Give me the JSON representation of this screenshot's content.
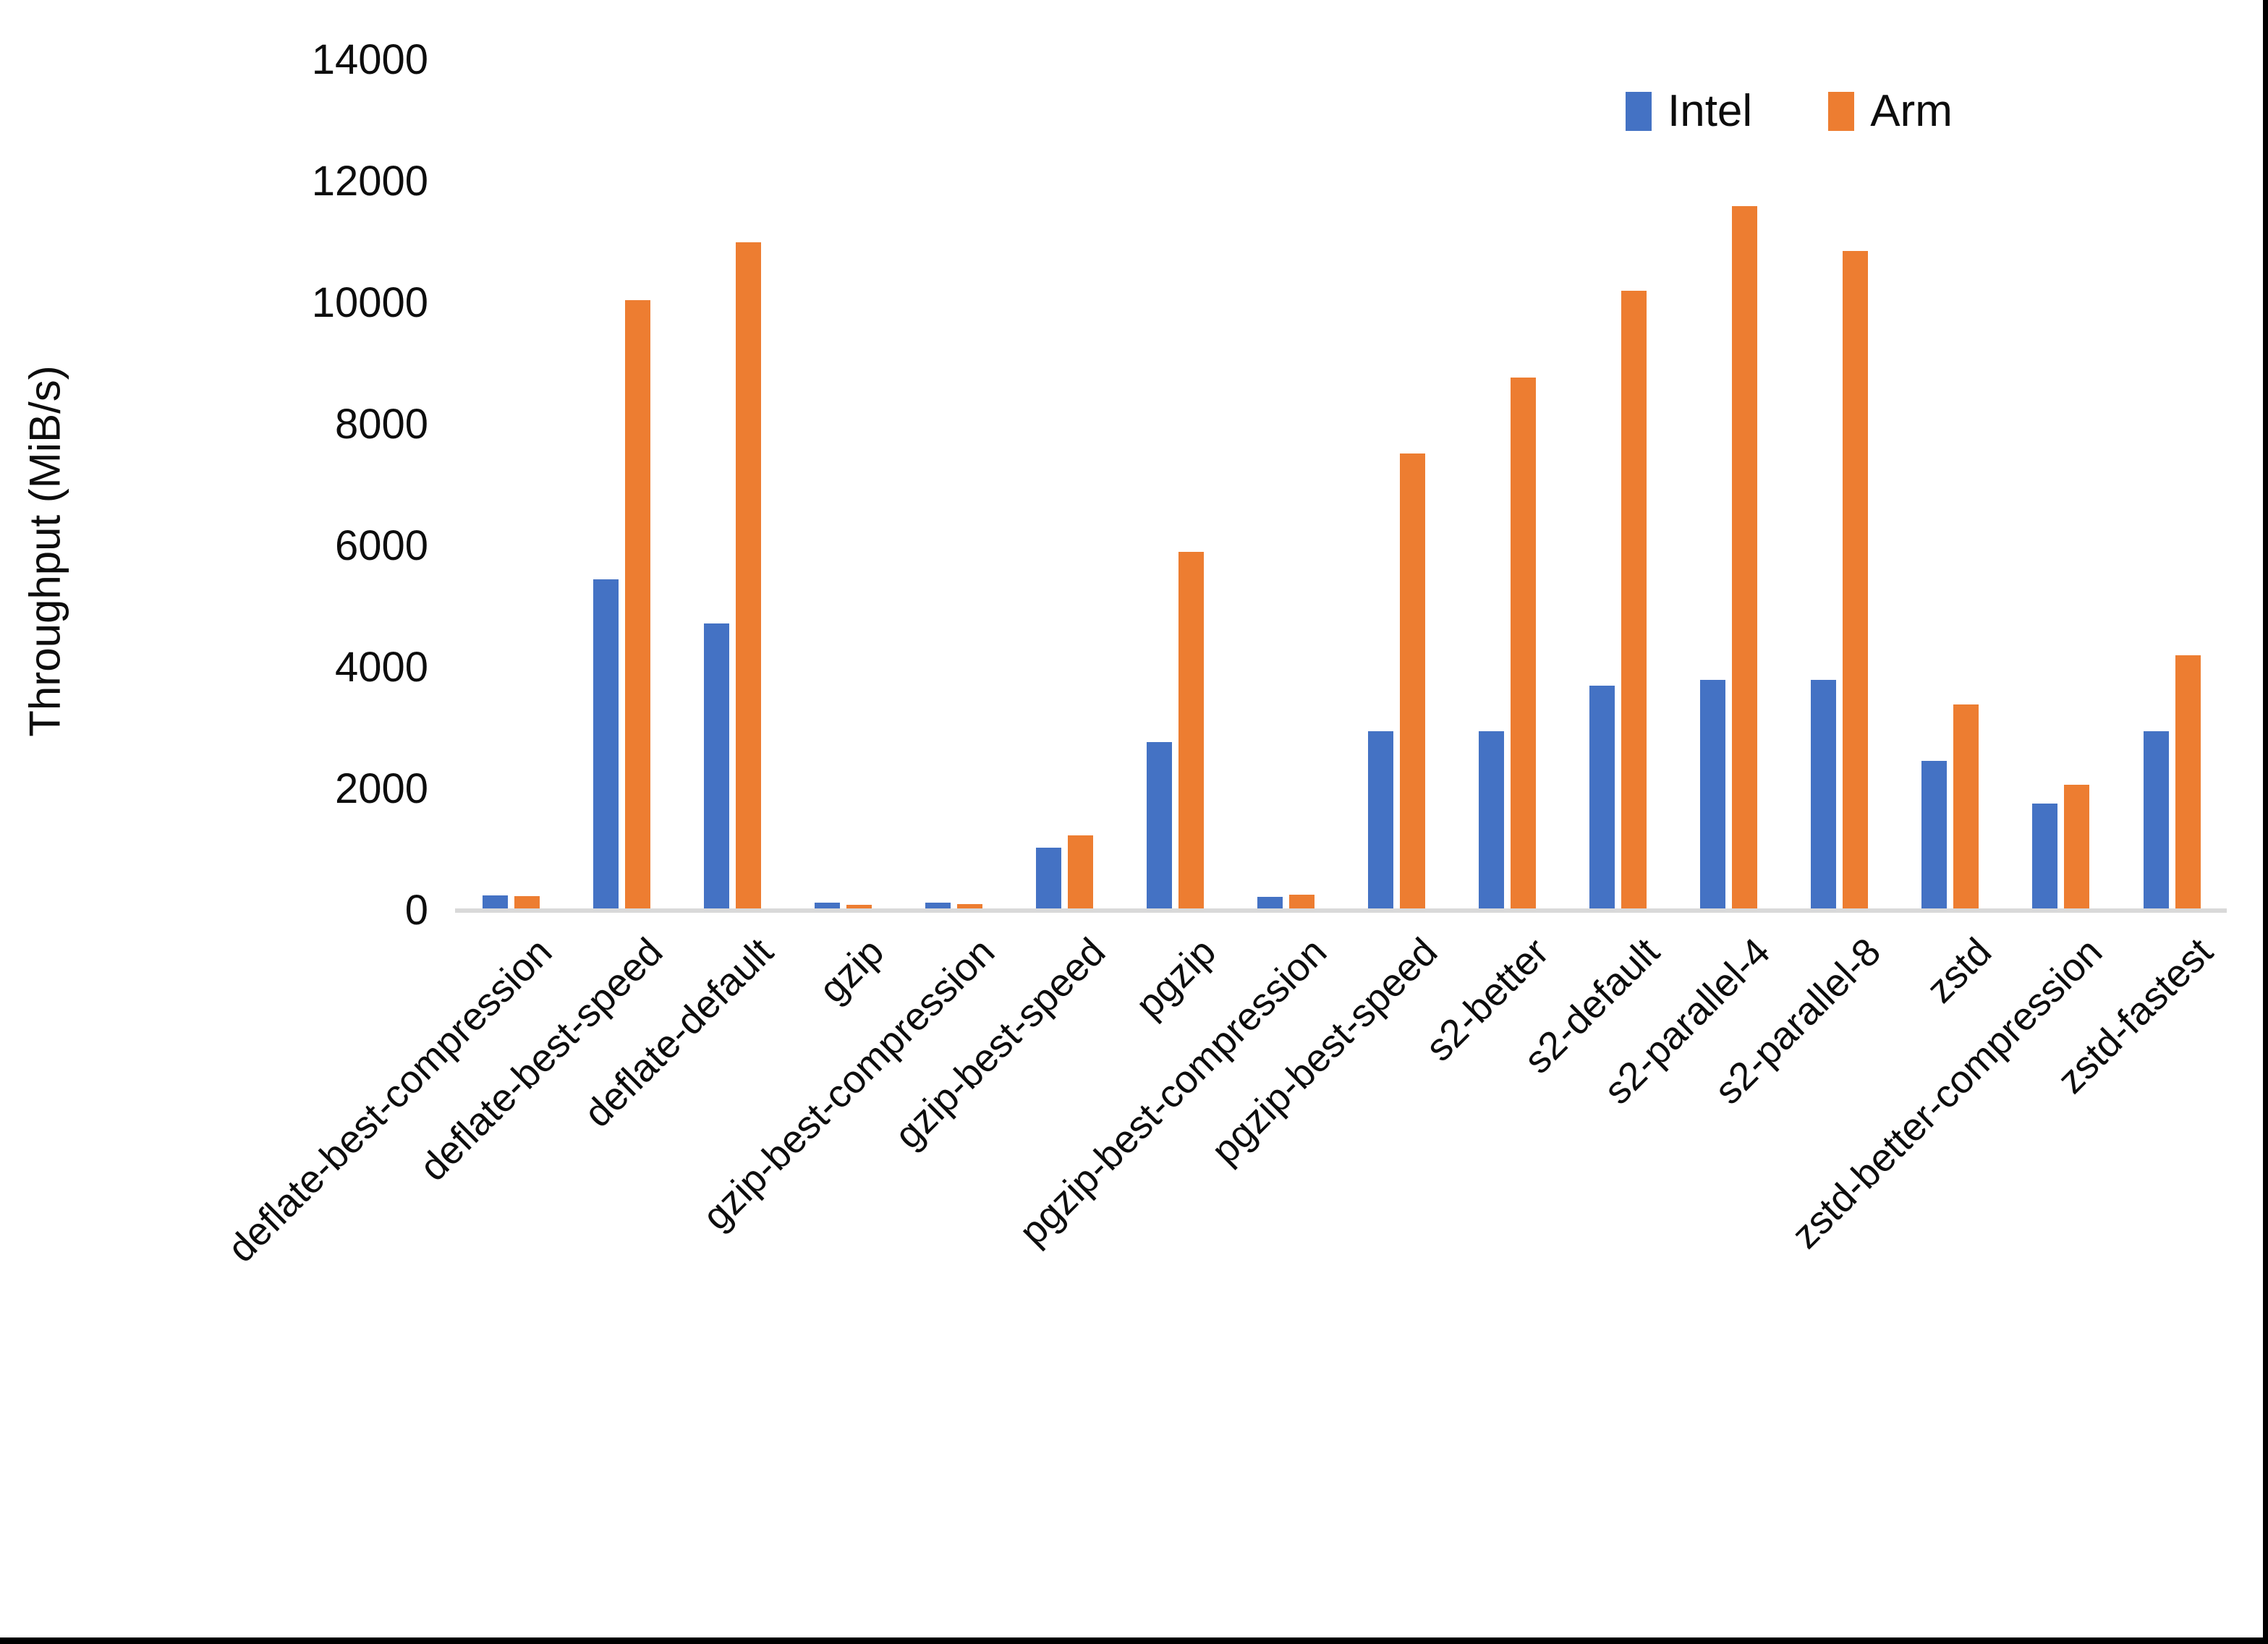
{
  "chart_data": {
    "type": "bar",
    "title": "",
    "xlabel": "",
    "ylabel": "Throughput (MiB/s)",
    "ylim": [
      0,
      14000
    ],
    "ytick_interval": 2000,
    "yticks": [
      0,
      2000,
      4000,
      6000,
      8000,
      10000,
      12000,
      14000
    ],
    "grid": false,
    "legend_position": "top-right",
    "categories": [
      "deflate-best-compression",
      "deflate-best-speed",
      "deflate-default",
      "gzip",
      "gzip-best-compression",
      "gzip-best-speed",
      "pgzip",
      "pgzip-best-compression",
      "pgzip-best-speed",
      "s2-better",
      "s2-default",
      "s2-parallel-4",
      "s2-parallel-8",
      "zstd",
      "zstd-better-compression",
      "zstd-fastest"
    ],
    "series": [
      {
        "name": "Intel",
        "color": "#4472C4",
        "values": [
          245,
          5450,
          4730,
          130,
          130,
          1030,
          2770,
          230,
          2950,
          2950,
          3700,
          3800,
          3800,
          2470,
          1760,
          2950
        ]
      },
      {
        "name": "Arm",
        "color": "#ED7D31",
        "values": [
          240,
          10050,
          11000,
          100,
          110,
          1240,
          5900,
          260,
          7520,
          8770,
          10200,
          11590,
          10860,
          3390,
          2070,
          4200
        ]
      }
    ],
    "colors": {
      "axis_line": "#D9D9D9",
      "text": "#0D0D0D",
      "background": "#FFFFFF",
      "screenshot_border": "#000000"
    }
  }
}
